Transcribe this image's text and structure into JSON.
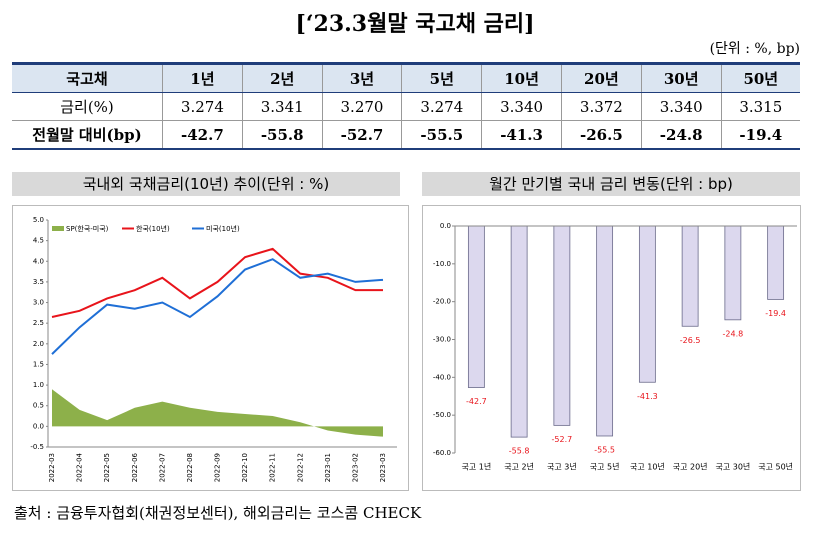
{
  "title": "[‘23.3월말 국고채 금리]",
  "unit": "(단위 : %, bp)",
  "table": {
    "header": [
      "국고채",
      "1년",
      "2년",
      "3년",
      "5년",
      "10년",
      "20년",
      "30년",
      "50년"
    ],
    "rows": [
      [
        "금리(%)",
        "3.274",
        "3.341",
        "3.270",
        "3.274",
        "3.340",
        "3.372",
        "3.340",
        "3.315"
      ],
      [
        "전월말 대비(bp)",
        "-42.7",
        "-55.8",
        "-52.7",
        "-55.5",
        "-41.3",
        "-26.5",
        "-24.8",
        "-19.4"
      ]
    ]
  },
  "chart_data": [
    {
      "type": "line",
      "title": "국내외 국채금리(10년) 추이(단위 : %)",
      "categories": [
        "2022-03",
        "2022-04",
        "2022-05",
        "2022-06",
        "2022-07",
        "2022-08",
        "2022-09",
        "2022-10",
        "2022-11",
        "2022-12",
        "2023-01",
        "2023-02",
        "2023-03"
      ],
      "series": [
        {
          "name": "SP(한국-미국)",
          "color": "#8db04a",
          "kind": "area",
          "values": [
            0.9,
            0.4,
            0.15,
            0.45,
            0.6,
            0.45,
            0.35,
            0.3,
            0.25,
            0.1,
            -0.1,
            -0.2,
            -0.25
          ]
        },
        {
          "name": "한국(10년)",
          "color": "#e8141b",
          "values": [
            2.65,
            2.8,
            3.1,
            3.3,
            3.6,
            3.1,
            3.5,
            4.1,
            4.3,
            3.7,
            3.6,
            3.3,
            3.3
          ]
        },
        {
          "name": "미국(10년)",
          "color": "#1f6fd6",
          "values": [
            1.75,
            2.4,
            2.95,
            2.85,
            3.0,
            2.65,
            3.15,
            3.8,
            4.05,
            3.6,
            3.7,
            3.5,
            3.55
          ]
        }
      ],
      "ylim": [
        -0.5,
        5.0
      ],
      "yticks": [
        {
          "value": 5,
          "label": "5.0"
        },
        {
          "value": 4.5,
          "label": "4.5"
        },
        {
          "value": 4,
          "label": "4.0"
        },
        {
          "value": 3.5,
          "label": "3.5"
        },
        {
          "value": 3,
          "label": "3.0"
        },
        {
          "value": 2.5,
          "label": "2.5"
        },
        {
          "value": 2,
          "label": "2.0"
        },
        {
          "value": 1.5,
          "label": "1.5"
        },
        {
          "value": 1,
          "label": "1.0"
        },
        {
          "value": 0.5,
          "label": "0.5"
        },
        {
          "value": 0,
          "label": "0.0"
        },
        {
          "value": -0.5,
          "label": "-0.5"
        }
      ]
    },
    {
      "type": "bar",
      "title": "월간 만기별 국내 금리 변동(단위 : bp)",
      "categories": [
        "국고 1년",
        "국고 2년",
        "국고 3년",
        "국고 5년",
        "국고 10년",
        "국고 20년",
        "국고 30년",
        "국고 50년"
      ],
      "values": [
        -42.7,
        -55.8,
        -52.7,
        -55.5,
        -41.3,
        -26.5,
        -24.8,
        -19.4
      ],
      "color": "#dcd8ee",
      "label_color": "#e8141b",
      "ylim": [
        -60,
        0
      ],
      "yticks": [
        {
          "value": 0,
          "label": "0.0"
        },
        {
          "value": -10,
          "label": "-10.0"
        },
        {
          "value": -20,
          "label": "-20.0"
        },
        {
          "value": -30,
          "label": "-30.0"
        },
        {
          "value": -40,
          "label": "-40.0"
        },
        {
          "value": -50,
          "label": "-50.0"
        },
        {
          "value": -60,
          "label": "-60.0"
        }
      ]
    }
  ],
  "source": "출처 : 금융투자협회(채권정보센터), 해외금리는 코스콤 CHECK"
}
